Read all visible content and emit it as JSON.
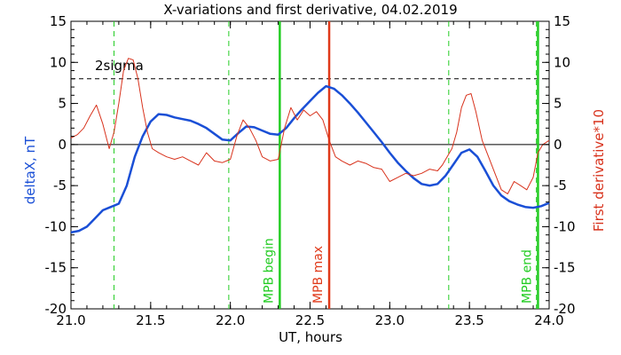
{
  "chart_data": {
    "type": "line",
    "title": "X-variations and first derivative, 04.02.2019",
    "xlabel": "UT, hours",
    "ylabel_left": "deltaX, nT",
    "ylabel_right": "First derivative*10",
    "xlim": [
      21.0,
      24.0
    ],
    "ylim_left": [
      -20,
      15
    ],
    "ylim_right": [
      -20,
      15
    ],
    "x_ticks": [
      "21.0",
      "21.5",
      "22.0",
      "22.5",
      "23.0",
      "23.5",
      "24.0"
    ],
    "y_ticks_left": [
      "-20",
      "-15",
      "-10",
      "-5",
      "0",
      "5",
      "10",
      "15"
    ],
    "y_ticks_right": [
      "-20",
      "-15",
      "-10",
      "-5",
      "0",
      "5",
      "10",
      "15"
    ],
    "grid": false,
    "colors": {
      "deltaX": "#1a4fd6",
      "derivative": "#d8321c",
      "mpb_begin_end": "#22cc22",
      "mpb_max": "#e03a1a",
      "sigma": "#000000",
      "zero": "#000000"
    },
    "series": [
      {
        "name": "deltaX, nT",
        "axis": "left",
        "x": [
          21.0,
          21.05,
          21.1,
          21.15,
          21.2,
          21.25,
          21.3,
          21.35,
          21.4,
          21.45,
          21.5,
          21.55,
          21.6,
          21.65,
          21.7,
          21.75,
          21.8,
          21.85,
          21.9,
          21.95,
          22.0,
          22.05,
          22.1,
          22.15,
          22.2,
          22.25,
          22.3,
          22.35,
          22.4,
          22.45,
          22.5,
          22.55,
          22.6,
          22.65,
          22.7,
          22.75,
          22.8,
          22.85,
          22.9,
          22.95,
          23.0,
          23.05,
          23.1,
          23.15,
          23.2,
          23.25,
          23.3,
          23.35,
          23.4,
          23.45,
          23.5,
          23.55,
          23.6,
          23.65,
          23.7,
          23.75,
          23.8,
          23.85,
          23.9,
          23.95,
          24.0
        ],
        "values": [
          -10.7,
          -10.5,
          -10.0,
          -9.0,
          -8.0,
          -7.6,
          -7.2,
          -5.0,
          -1.5,
          1.0,
          2.8,
          3.7,
          3.6,
          3.3,
          3.1,
          2.9,
          2.5,
          2.0,
          1.3,
          0.6,
          0.5,
          1.4,
          2.2,
          2.1,
          1.7,
          1.3,
          1.2,
          2.0,
          3.2,
          4.3,
          5.3,
          6.3,
          7.1,
          6.8,
          6.0,
          5.0,
          3.9,
          2.7,
          1.5,
          0.3,
          -1.0,
          -2.2,
          -3.2,
          -4.1,
          -4.8,
          -5.0,
          -4.8,
          -3.8,
          -2.4,
          -1.0,
          -0.6,
          -1.5,
          -3.2,
          -5.0,
          -6.2,
          -6.9,
          -7.3,
          -7.6,
          -7.7,
          -7.5,
          -7.1
        ]
      },
      {
        "name": "First derivative*10",
        "axis": "right",
        "x": [
          21.0,
          21.04,
          21.08,
          21.12,
          21.16,
          21.2,
          21.24,
          21.27,
          21.3,
          21.33,
          21.36,
          21.39,
          21.42,
          21.45,
          21.48,
          21.51,
          21.55,
          21.6,
          21.65,
          21.7,
          21.75,
          21.8,
          21.85,
          21.9,
          21.95,
          22.0,
          22.04,
          22.08,
          22.12,
          22.16,
          22.2,
          22.25,
          22.3,
          22.34,
          22.38,
          22.42,
          22.46,
          22.5,
          22.54,
          22.58,
          22.62,
          22.66,
          22.7,
          22.75,
          22.8,
          22.85,
          22.9,
          22.95,
          23.0,
          23.05,
          23.1,
          23.15,
          23.2,
          23.25,
          23.3,
          23.33,
          23.36,
          23.39,
          23.42,
          23.45,
          23.48,
          23.51,
          23.54,
          23.58,
          23.62,
          23.66,
          23.7,
          23.74,
          23.78,
          23.82,
          23.86,
          23.9,
          23.93,
          23.96,
          24.0
        ],
        "values": [
          0.8,
          1.2,
          2.0,
          3.5,
          4.8,
          2.5,
          -0.5,
          1.5,
          5.0,
          9.0,
          10.5,
          10.3,
          8.0,
          4.5,
          1.5,
          -0.5,
          -1.0,
          -1.5,
          -1.8,
          -1.5,
          -2.0,
          -2.5,
          -1.0,
          -2.0,
          -2.2,
          -1.8,
          1.0,
          3.0,
          2.0,
          0.5,
          -1.5,
          -2.0,
          -1.8,
          2.0,
          4.5,
          3.0,
          4.2,
          3.5,
          4.0,
          3.0,
          0.5,
          -1.5,
          -2.0,
          -2.5,
          -2.0,
          -2.3,
          -2.8,
          -3.0,
          -4.5,
          -4.0,
          -3.5,
          -3.8,
          -3.5,
          -3.0,
          -3.2,
          -2.5,
          -1.5,
          -0.5,
          1.5,
          4.5,
          6.0,
          6.2,
          4.0,
          0.5,
          -1.5,
          -3.5,
          -5.5,
          -6.0,
          -4.5,
          -5.0,
          -5.5,
          -4.0,
          -1.0,
          0.0,
          0.5
        ]
      }
    ],
    "reference_lines": {
      "sigma": {
        "label": "2sigma",
        "value": 8
      },
      "zero": {
        "value": 0
      }
    },
    "annotations": [
      {
        "label": "MPB begin",
        "x": 22.31,
        "style": "solid",
        "color": "#22cc22"
      },
      {
        "label": "MPB max",
        "x": 22.62,
        "style": "solid",
        "color": "#e03a1a"
      },
      {
        "label": "MPB end",
        "x": 23.93,
        "style": "solid",
        "color": "#22cc22"
      }
    ],
    "dashed_markers_x": [
      21.27,
      21.99,
      23.37,
      23.92
    ]
  }
}
